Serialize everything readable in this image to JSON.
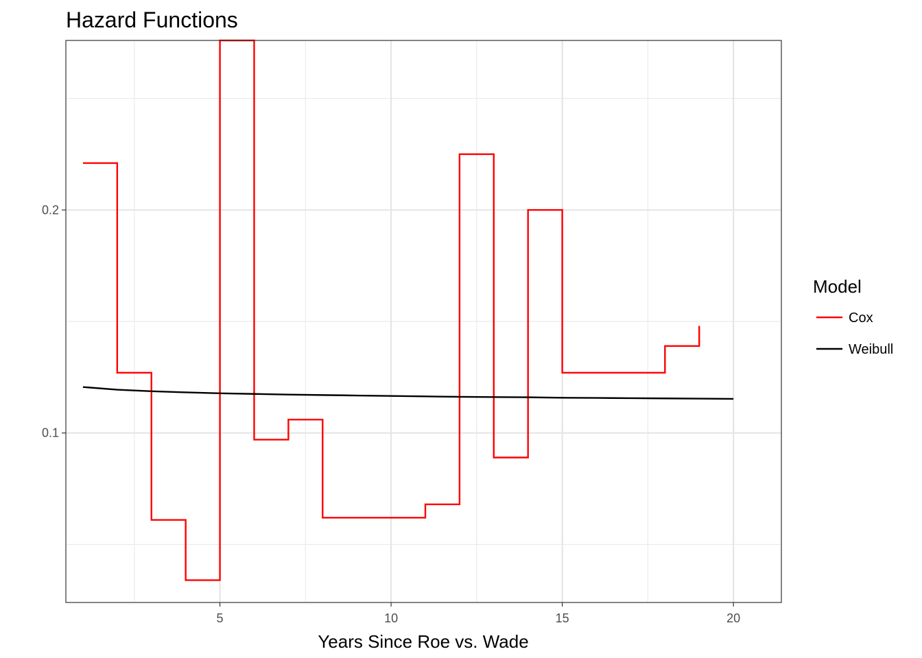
{
  "chart_data": {
    "type": "line",
    "title": "Hazard Functions",
    "xlabel": "Years Since Roe vs. Wade",
    "ylabel": "",
    "xlim": [
      0.5,
      21.4
    ],
    "ylim": [
      0.024,
      0.276
    ],
    "x_ticks": [
      5,
      10,
      15,
      20
    ],
    "x_tick_labels": [
      "5",
      "10",
      "15",
      "20"
    ],
    "y_ticks": [
      0.1,
      0.2
    ],
    "y_tick_labels": [
      "0.1",
      "0.2"
    ],
    "x_minor_grid": [
      2.5,
      7.5,
      12.5,
      17.5
    ],
    "y_minor_grid": [
      0.05,
      0.15,
      0.25
    ],
    "grid": true,
    "legend": {
      "title": "Model",
      "position": "right"
    },
    "series": [
      {
        "name": "Cox",
        "color": "#ff0000",
        "step": true,
        "x": [
          1,
          2,
          3,
          4,
          5,
          6,
          7,
          8,
          9,
          10,
          11,
          12,
          13,
          14,
          15,
          16,
          17,
          18,
          19
        ],
        "y": [
          0.221,
          0.127,
          0.061,
          0.034,
          0.276,
          0.097,
          0.106,
          0.062,
          0.062,
          0.062,
          0.068,
          0.225,
          0.089,
          0.2,
          0.127,
          0.127,
          0.127,
          0.139,
          0.148
        ]
      },
      {
        "name": "Weibull",
        "color": "#000000",
        "step": false,
        "x": [
          1,
          2,
          3,
          4,
          5,
          6,
          7,
          8,
          9,
          10,
          11,
          12,
          13,
          14,
          15,
          16,
          17,
          18,
          19,
          20
        ],
        "y": [
          0.1206,
          0.1194,
          0.1187,
          0.1182,
          0.1178,
          0.1175,
          0.1172,
          0.117,
          0.1168,
          0.1166,
          0.1164,
          0.1162,
          0.1161,
          0.116,
          0.1158,
          0.1157,
          0.1156,
          0.1155,
          0.1154,
          0.1153
        ]
      }
    ]
  }
}
